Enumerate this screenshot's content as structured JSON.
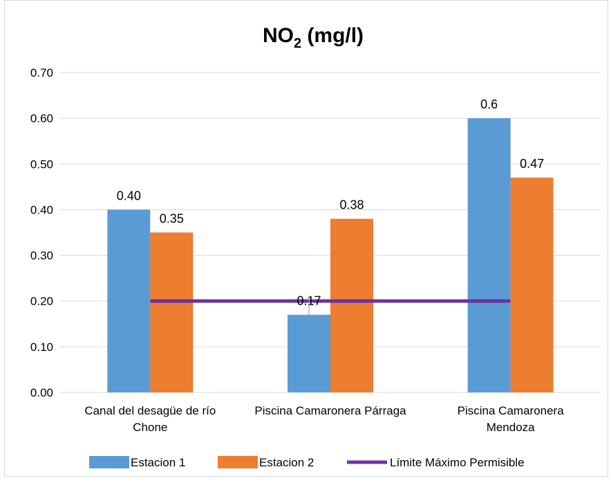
{
  "chart_data": {
    "type": "bar",
    "title": "NO",
    "title_subscript": "2",
    "title_suffix": " (mg/l)",
    "categories": [
      [
        "Canal del desagüe de río",
        "Chone"
      ],
      [
        "Piscina Camaronera Párraga"
      ],
      [
        "Piscina Camaronera",
        "Mendoza"
      ]
    ],
    "series": [
      {
        "name": "Estacion 1",
        "color": "#5b9bd5",
        "values": [
          0.4,
          0.17,
          0.6
        ],
        "labels": [
          "0.40",
          "0.17",
          "0.6"
        ]
      },
      {
        "name": "Estacion 2",
        "color": "#ed7d31",
        "values": [
          0.35,
          0.38,
          0.47
        ],
        "labels": [
          "0.35",
          "0.38",
          "0.47"
        ]
      }
    ],
    "reference_line": {
      "name": "Límite Máximo Permisible",
      "value": 0.2,
      "color": "#7030a0"
    },
    "ylim": [
      0,
      0.7
    ],
    "yticks": [
      0.0,
      0.1,
      0.2,
      0.3,
      0.4,
      0.5,
      0.6,
      0.7
    ],
    "ytick_labels": [
      "0.00",
      "0.10",
      "0.20",
      "0.30",
      "0.40",
      "0.50",
      "0.60",
      "0.70"
    ],
    "grid": true,
    "legend_position": "bottom",
    "xlabel": "",
    "ylabel": ""
  }
}
